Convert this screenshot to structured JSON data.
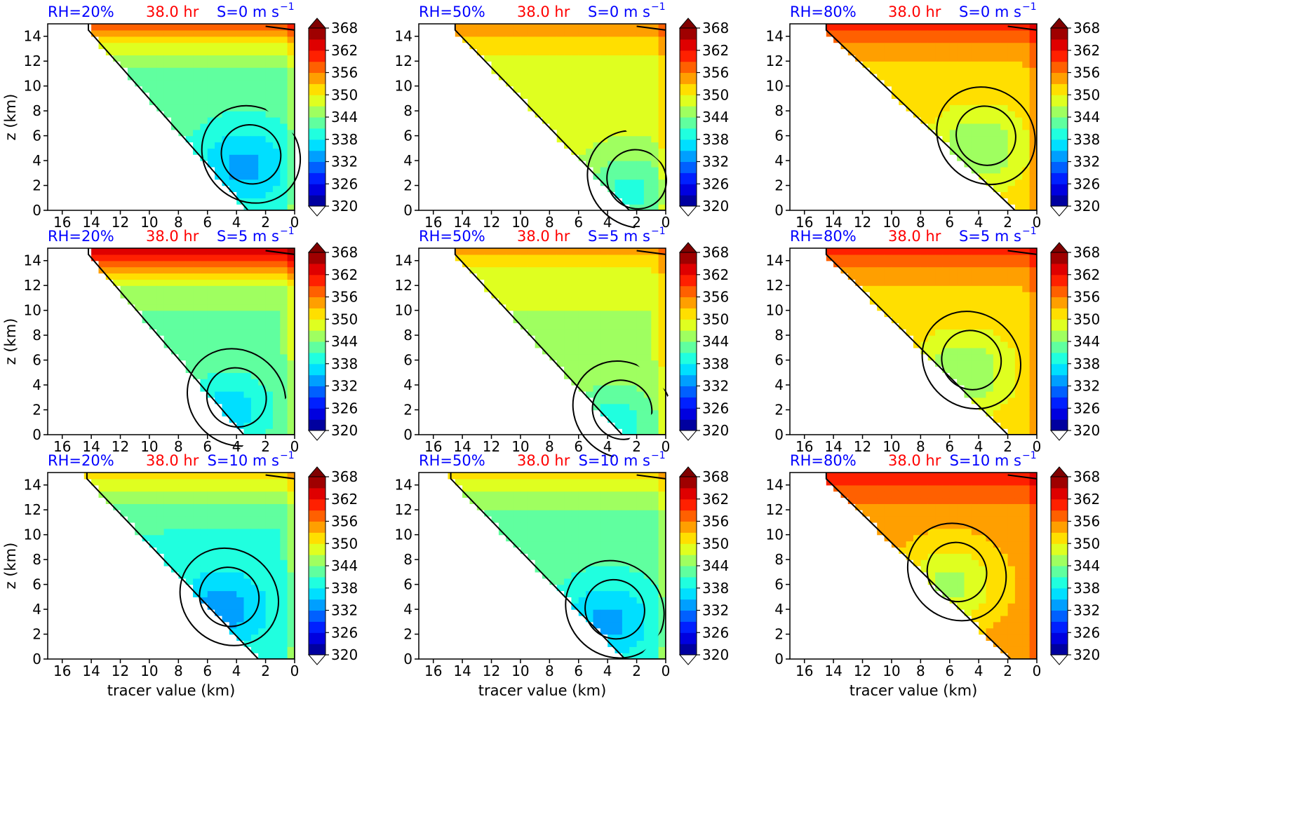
{
  "figure": {
    "colorbar_ticks": [
      "368",
      "362",
      "356",
      "350",
      "344",
      "338",
      "332",
      "326",
      "320"
    ],
    "colorbar_levels": [
      320,
      323,
      326,
      329,
      332,
      335,
      338,
      341,
      344,
      347,
      350,
      353,
      356,
      359,
      362,
      365,
      368
    ],
    "xticks": [
      "16",
      "14",
      "12",
      "10",
      "8",
      "6",
      "4",
      "2",
      "0"
    ],
    "yticks": [
      "14",
      "12",
      "10",
      "8",
      "6",
      "4",
      "2",
      "0"
    ],
    "xlabel": "tracer value (km)",
    "ylabel": "z (km)",
    "colors": {
      "rh": "#0000ff",
      "time": "#ff0000",
      "shear": "#0000ff"
    }
  },
  "chart_data": [
    {
      "type": "heatmap",
      "rh": "RH=20%",
      "time": "38.0 hr",
      "shear": "S=0 m s",
      "shear_exp": "−1",
      "xlim": [
        17,
        0
      ],
      "ylim": [
        0,
        15
      ],
      "dominant_value": 342,
      "top_value": 360,
      "diag_top": [
        14.2,
        14.5
      ],
      "diag_bottom": [
        3.2,
        0
      ],
      "cold_core": [
        3.5,
        3.5
      ]
    },
    {
      "type": "heatmap",
      "rh": "RH=50%",
      "time": "38.0 hr",
      "shear": "S=0 m s",
      "shear_exp": "−1",
      "xlim": [
        17,
        0
      ],
      "ylim": [
        0,
        15
      ],
      "dominant_value": 348,
      "top_value": 356,
      "diag_top": [
        14.5,
        14.5
      ],
      "diag_bottom": [
        2.5,
        0
      ],
      "cold_core": [
        2.5,
        1.5
      ]
    },
    {
      "type": "heatmap",
      "rh": "RH=80%",
      "time": "38.0 hr",
      "shear": "S=0 m s",
      "shear_exp": "−1",
      "xlim": [
        17,
        0
      ],
      "ylim": [
        0,
        15
      ],
      "dominant_value": 352,
      "top_value": 360,
      "diag_top": [
        14.5,
        14.5
      ],
      "diag_bottom": [
        1.5,
        0
      ],
      "cold_core": [
        4,
        5
      ]
    },
    {
      "type": "heatmap",
      "rh": "RH=20%",
      "time": "38.0 hr",
      "shear": "S=5 m s",
      "shear_exp": "−1",
      "xlim": [
        17,
        0
      ],
      "ylim": [
        0,
        15
      ],
      "dominant_value": 344,
      "top_value": 366,
      "diag_top": [
        14.2,
        14.5
      ],
      "diag_bottom": [
        3.5,
        0
      ],
      "cold_core": [
        4.5,
        2
      ]
    },
    {
      "type": "heatmap",
      "rh": "RH=50%",
      "time": "38.0 hr",
      "shear": "S=5 m s",
      "shear_exp": "−1",
      "xlim": [
        17,
        0
      ],
      "ylim": [
        0,
        15
      ],
      "dominant_value": 347,
      "top_value": 354,
      "diag_top": [
        14.5,
        14.5
      ],
      "diag_bottom": [
        3,
        0
      ],
      "cold_core": [
        3.5,
        1
      ]
    },
    {
      "type": "heatmap",
      "rh": "RH=80%",
      "time": "38.0 hr",
      "shear": "S=5 m s",
      "shear_exp": "−1",
      "xlim": [
        17,
        0
      ],
      "ylim": [
        0,
        15
      ],
      "dominant_value": 352,
      "top_value": 360,
      "diag_top": [
        14.5,
        14.5
      ],
      "diag_bottom": [
        2,
        0
      ],
      "cold_core": [
        5,
        5
      ]
    },
    {
      "type": "heatmap",
      "rh": "RH=20%",
      "time": "38.0 hr",
      "shear": "S=10 m s",
      "shear_exp": "−1",
      "xlim": [
        17,
        0
      ],
      "ylim": [
        0,
        15
      ],
      "dominant_value": 341,
      "top_value": 352,
      "diag_top": [
        14.3,
        14.5
      ],
      "diag_bottom": [
        2.5,
        0
      ],
      "cold_core": [
        5,
        4
      ]
    },
    {
      "type": "heatmap",
      "rh": "RH=50%",
      "time": "38.0 hr",
      "shear": "S=10 m s",
      "shear_exp": "−1",
      "xlim": [
        17,
        0
      ],
      "ylim": [
        0,
        15
      ],
      "dominant_value": 342,
      "top_value": 352,
      "diag_top": [
        14.8,
        14.5
      ],
      "diag_bottom": [
        2.8,
        0
      ],
      "cold_core": [
        4,
        3
      ]
    },
    {
      "type": "heatmap",
      "rh": "RH=80%",
      "time": "38.0 hr",
      "shear": "S=10 m s",
      "shear_exp": "−1",
      "xlim": [
        17,
        0
      ],
      "ylim": [
        0,
        15
      ],
      "dominant_value": 354,
      "top_value": 362,
      "diag_top": [
        14.5,
        14.5
      ],
      "diag_bottom": [
        1.8,
        0
      ],
      "cold_core": [
        6,
        6
      ]
    }
  ]
}
